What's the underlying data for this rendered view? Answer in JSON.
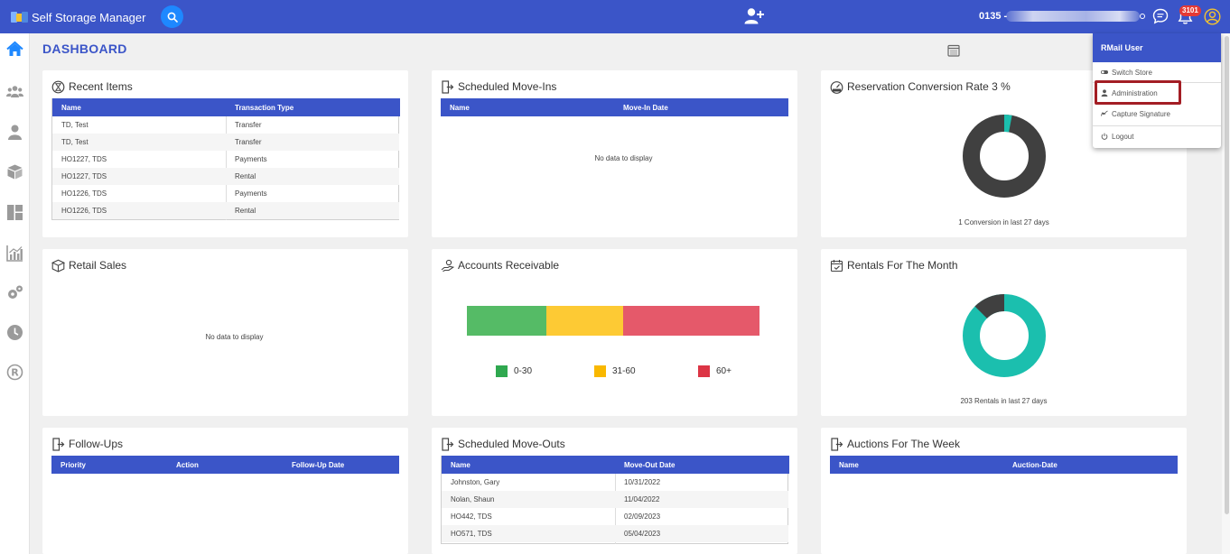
{
  "app": {
    "title": "Self Storage Manager"
  },
  "header": {
    "store_code": "0135 -",
    "notification_count": "3101"
  },
  "page": {
    "title": "DASHBOARD"
  },
  "colors": {
    "primary": "#3b55c8",
    "teal": "#1bbfae",
    "dark": "#404040",
    "green": "#55bb66",
    "yellow": "#fdca34",
    "red": "#e5596a"
  },
  "sidebar": {
    "icons": [
      "home-icon",
      "team-icon",
      "user-icon",
      "box-icon",
      "layout-icon",
      "chart-icon",
      "settings-icon",
      "clock-icon",
      "registered-icon"
    ]
  },
  "recent_items": {
    "title": "Recent Items",
    "columns": [
      "Name",
      "Transaction Type"
    ],
    "rows": [
      [
        "TD, Test",
        "Transfer"
      ],
      [
        "TD, Test",
        "Transfer"
      ],
      [
        "HO1227, TDS",
        "Payments"
      ],
      [
        "HO1227, TDS",
        "Rental"
      ],
      [
        "HO1226, TDS",
        "Payments"
      ],
      [
        "HO1226, TDS",
        "Rental"
      ]
    ]
  },
  "scheduled_move_ins": {
    "title": "Scheduled Move-Ins",
    "columns": [
      "Name",
      "Move-In Date"
    ],
    "empty_text": "No data to display"
  },
  "reservation_conversion": {
    "title": "Reservation Conversion Rate 3 %",
    "caption": "1 Conversion in last 27 days",
    "percent": 3
  },
  "retail_sales": {
    "title": "Retail Sales",
    "empty_text": "No data to display"
  },
  "accounts_receivable": {
    "title": "Accounts Receivable",
    "legend": [
      "0-30",
      "31-60",
      "60+"
    ]
  },
  "rentals_month": {
    "title": "Rentals For The Month",
    "caption": "203 Rentals in last 27 days"
  },
  "follow_ups": {
    "title": "Follow-Ups",
    "columns": [
      "Priority",
      "Action",
      "Follow-Up Date"
    ]
  },
  "scheduled_move_outs": {
    "title": "Scheduled Move-Outs",
    "columns": [
      "Name",
      "Move-Out Date"
    ],
    "rows": [
      [
        "Johnston, Gary",
        "10/31/2022"
      ],
      [
        "Nolan, Shaun",
        "11/04/2022"
      ],
      [
        "HO442, TDS",
        "02/09/2023"
      ],
      [
        "HO571, TDS",
        "05/04/2023"
      ]
    ]
  },
  "auctions_week": {
    "title": "Auctions For The Week",
    "columns": [
      "Name",
      "Auction-Date"
    ]
  },
  "user_menu": {
    "user_name": "RMail User",
    "items": [
      "Switch Store",
      "Administration",
      "Capture Signature",
      "Logout"
    ]
  }
}
